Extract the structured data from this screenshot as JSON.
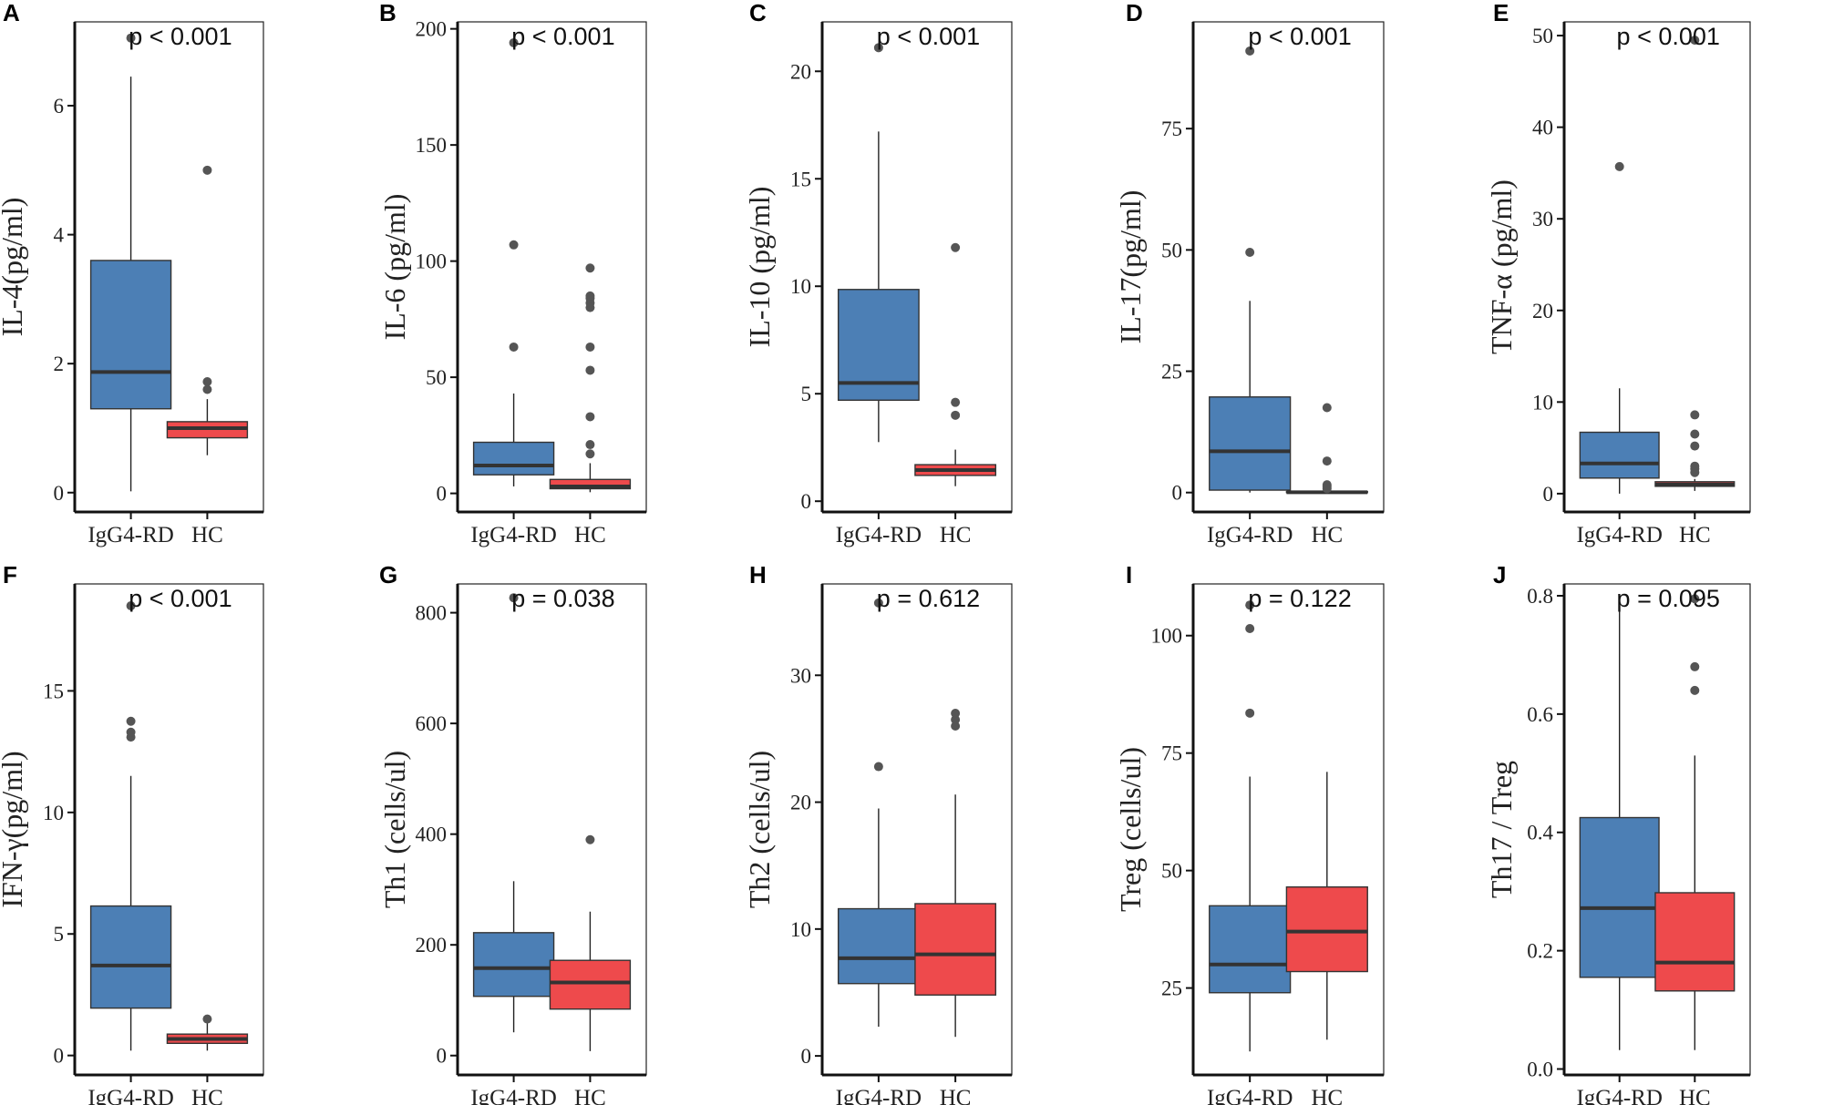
{
  "style": {
    "igg4_color": "#4C7FB5",
    "hc_color": "#EE4A4C",
    "median_color": "#333333",
    "whisker_color": "#222222",
    "outlier_color": "#555555"
  },
  "chart_data": [
    {
      "type": "box",
      "panel_letter": "A",
      "ylabel": "IL-4(pg/ml)",
      "p_value": "p < 0.001",
      "categories": [
        "IgG4-RD",
        "HC"
      ],
      "ylim": [
        -0.3,
        7.3
      ],
      "yticks": [
        0,
        2,
        4,
        6
      ],
      "tick_labels": [
        "0",
        "2",
        "4",
        "6"
      ],
      "boxes": [
        {
          "name": "IgG4-RD",
          "q1": 1.3,
          "median": 1.87,
          "q3": 3.6,
          "whisker_low": 0.02,
          "whisker_high": 6.45,
          "outliers": [
            7.05
          ]
        },
        {
          "name": "HC",
          "q1": 0.85,
          "median": 1.0,
          "q3": 1.1,
          "whisker_low": 0.58,
          "whisker_high": 1.45,
          "outliers": [
            1.6,
            1.72,
            5.0
          ]
        }
      ]
    },
    {
      "type": "box",
      "panel_letter": "B",
      "ylabel": "IL-6 (pg/ml)",
      "p_value": "p < 0.001",
      "categories": [
        "IgG4-RD",
        "HC"
      ],
      "ylim": [
        -8,
        203
      ],
      "yticks": [
        0,
        50,
        100,
        150,
        200
      ],
      "tick_labels": [
        "0",
        "50",
        "100",
        "150",
        "200"
      ],
      "boxes": [
        {
          "name": "IgG4-RD",
          "q1": 8,
          "median": 12,
          "q3": 22,
          "whisker_low": 3,
          "whisker_high": 43,
          "outliers": [
            63,
            107,
            194
          ]
        },
        {
          "name": "HC",
          "q1": 2,
          "median": 3,
          "q3": 6,
          "whisker_low": 0.5,
          "whisker_high": 13,
          "outliers": [
            17,
            21,
            33,
            53,
            63,
            80,
            82,
            84,
            85,
            97
          ]
        }
      ]
    },
    {
      "type": "box",
      "panel_letter": "C",
      "ylabel": "IL-10 (pg/ml)",
      "p_value": "p < 0.001",
      "categories": [
        "IgG4-RD",
        "HC"
      ],
      "ylim": [
        -0.5,
        22.3
      ],
      "yticks": [
        0,
        5,
        10,
        15,
        20
      ],
      "tick_labels": [
        "0",
        "5",
        "10",
        "15",
        "20"
      ],
      "boxes": [
        {
          "name": "IgG4-RD",
          "q1": 4.7,
          "median": 5.5,
          "q3": 9.85,
          "whisker_low": 2.75,
          "whisker_high": 17.2,
          "outliers": [
            21.1
          ]
        },
        {
          "name": "HC",
          "q1": 1.2,
          "median": 1.45,
          "q3": 1.7,
          "whisker_low": 0.7,
          "whisker_high": 2.4,
          "outliers": [
            4.0,
            4.6,
            11.8
          ]
        }
      ]
    },
    {
      "type": "box",
      "panel_letter": "D",
      "ylabel": "IL-17(pg/ml)",
      "p_value": "p < 0.001",
      "categories": [
        "IgG4-RD",
        "HC"
      ],
      "ylim": [
        -4,
        97
      ],
      "yticks": [
        0,
        25,
        50,
        75
      ],
      "tick_labels": [
        "0",
        "25",
        "50",
        "75"
      ],
      "boxes": [
        {
          "name": "IgG4-RD",
          "q1": 0.5,
          "median": 8.5,
          "q3": 19.7,
          "whisker_low": 0,
          "whisker_high": 39.5,
          "outliers": [
            49.5,
            91
          ]
        },
        {
          "name": "HC",
          "q1": 0,
          "median": 0.05,
          "q3": 0.2,
          "whisker_low": 0,
          "whisker_high": 0.3,
          "outliers": [
            0.8,
            1.2,
            1.6,
            6.5,
            17.5
          ]
        }
      ]
    },
    {
      "type": "box",
      "panel_letter": "E",
      "ylabel": "TNF-α (pg/ml)",
      "p_value": "p < 0.001",
      "categories": [
        "IgG4-RD",
        "HC"
      ],
      "ylim": [
        -2,
        51.5
      ],
      "yticks": [
        0,
        10,
        20,
        30,
        40,
        50
      ],
      "tick_labels": [
        "0",
        "10",
        "20",
        "30",
        "40",
        "50"
      ],
      "boxes": [
        {
          "name": "IgG4-RD",
          "q1": 1.7,
          "median": 3.3,
          "q3": 6.7,
          "whisker_low": 0,
          "whisker_high": 11.5,
          "outliers": [
            35.7
          ]
        },
        {
          "name": "HC",
          "q1": 0.8,
          "median": 1.0,
          "q3": 1.3,
          "whisker_low": 0.3,
          "whisker_high": 1.6,
          "outliers": [
            2.3,
            2.7,
            3.0,
            5.2,
            6.5,
            8.6,
            49.5
          ]
        }
      ]
    },
    {
      "type": "box",
      "panel_letter": "F",
      "ylabel": "IFN-γ(pg/ml)",
      "p_value": "p < 0.001",
      "categories": [
        "IgG4-RD",
        "HC"
      ],
      "ylim": [
        -0.8,
        19.4
      ],
      "yticks": [
        0,
        5,
        10,
        15
      ],
      "tick_labels": [
        "0",
        "5",
        "10",
        "15"
      ],
      "boxes": [
        {
          "name": "IgG4-RD",
          "q1": 1.95,
          "median": 3.7,
          "q3": 6.15,
          "whisker_low": 0.2,
          "whisker_high": 11.5,
          "outliers": [
            13.1,
            13.3,
            13.75,
            18.5
          ]
        },
        {
          "name": "HC",
          "q1": 0.5,
          "median": 0.68,
          "q3": 0.88,
          "whisker_low": 0.2,
          "whisker_high": 1.4,
          "outliers": [
            1.5
          ]
        }
      ]
    },
    {
      "type": "box",
      "panel_letter": "G",
      "ylabel": "Th1 (cells/ul)",
      "p_value": "p = 0.038",
      "categories": [
        "IgG4-RD",
        "HC"
      ],
      "ylim": [
        -35,
        852
      ],
      "yticks": [
        0,
        200,
        400,
        600,
        800
      ],
      "tick_labels": [
        "0",
        "200",
        "400",
        "600",
        "800"
      ],
      "boxes": [
        {
          "name": "IgG4-RD",
          "q1": 107,
          "median": 158,
          "q3": 222,
          "whisker_low": 42,
          "whisker_high": 315,
          "outliers": [
            827
          ]
        },
        {
          "name": "HC",
          "q1": 84,
          "median": 132,
          "q3": 172,
          "whisker_low": 8,
          "whisker_high": 260,
          "outliers": [
            390
          ]
        }
      ]
    },
    {
      "type": "box",
      "panel_letter": "H",
      "ylabel": "Th2 (cells/ul)",
      "p_value": "p = 0.612",
      "categories": [
        "IgG4-RD",
        "HC"
      ],
      "ylim": [
        -1.5,
        37.2
      ],
      "yticks": [
        0,
        10,
        20,
        30
      ],
      "tick_labels": [
        "0",
        "10",
        "20",
        "30"
      ],
      "boxes": [
        {
          "name": "IgG4-RD",
          "q1": 5.7,
          "median": 7.7,
          "q3": 11.6,
          "whisker_low": 2.3,
          "whisker_high": 19.5,
          "outliers": [
            22.8,
            35.7
          ]
        },
        {
          "name": "HC",
          "q1": 4.8,
          "median": 8.0,
          "q3": 12.0,
          "whisker_low": 1.5,
          "whisker_high": 20.6,
          "outliers": [
            26.0,
            26.5,
            27.0
          ]
        }
      ]
    },
    {
      "type": "box",
      "panel_letter": "I",
      "ylabel": "Treg (cells/ul)",
      "p_value": "p = 0.122",
      "categories": [
        "IgG4-RD",
        "HC"
      ],
      "ylim": [
        6.5,
        111
      ],
      "yticks": [
        25,
        50,
        75,
        100
      ],
      "tick_labels": [
        "25",
        "50",
        "75",
        "100"
      ],
      "boxes": [
        {
          "name": "IgG4-RD",
          "q1": 24,
          "median": 30,
          "q3": 42.5,
          "whisker_low": 11.5,
          "whisker_high": 70,
          "outliers": [
            83.5,
            101.5,
            106.5
          ]
        },
        {
          "name": "HC",
          "q1": 28.5,
          "median": 37,
          "q3": 46.5,
          "whisker_low": 14,
          "whisker_high": 71,
          "outliers": []
        }
      ]
    },
    {
      "type": "box",
      "panel_letter": "J",
      "ylabel": "Th17 / Treg",
      "p_value": "p = 0.095",
      "categories": [
        "IgG4-RD",
        "HC"
      ],
      "ylim": [
        -0.01,
        0.82
      ],
      "yticks": [
        0.0,
        0.2,
        0.4,
        0.6,
        0.8
      ],
      "tick_labels": [
        "0.0",
        "0.2",
        "0.4",
        "0.6",
        "0.8"
      ],
      "boxes": [
        {
          "name": "IgG4-RD",
          "q1": 0.155,
          "median": 0.272,
          "q3": 0.425,
          "whisker_low": 0.032,
          "whisker_high": 0.785,
          "outliers": []
        },
        {
          "name": "HC",
          "q1": 0.132,
          "median": 0.18,
          "q3": 0.298,
          "whisker_low": 0.032,
          "whisker_high": 0.53,
          "outliers": [
            0.64,
            0.68,
            0.795
          ]
        }
      ]
    }
  ]
}
